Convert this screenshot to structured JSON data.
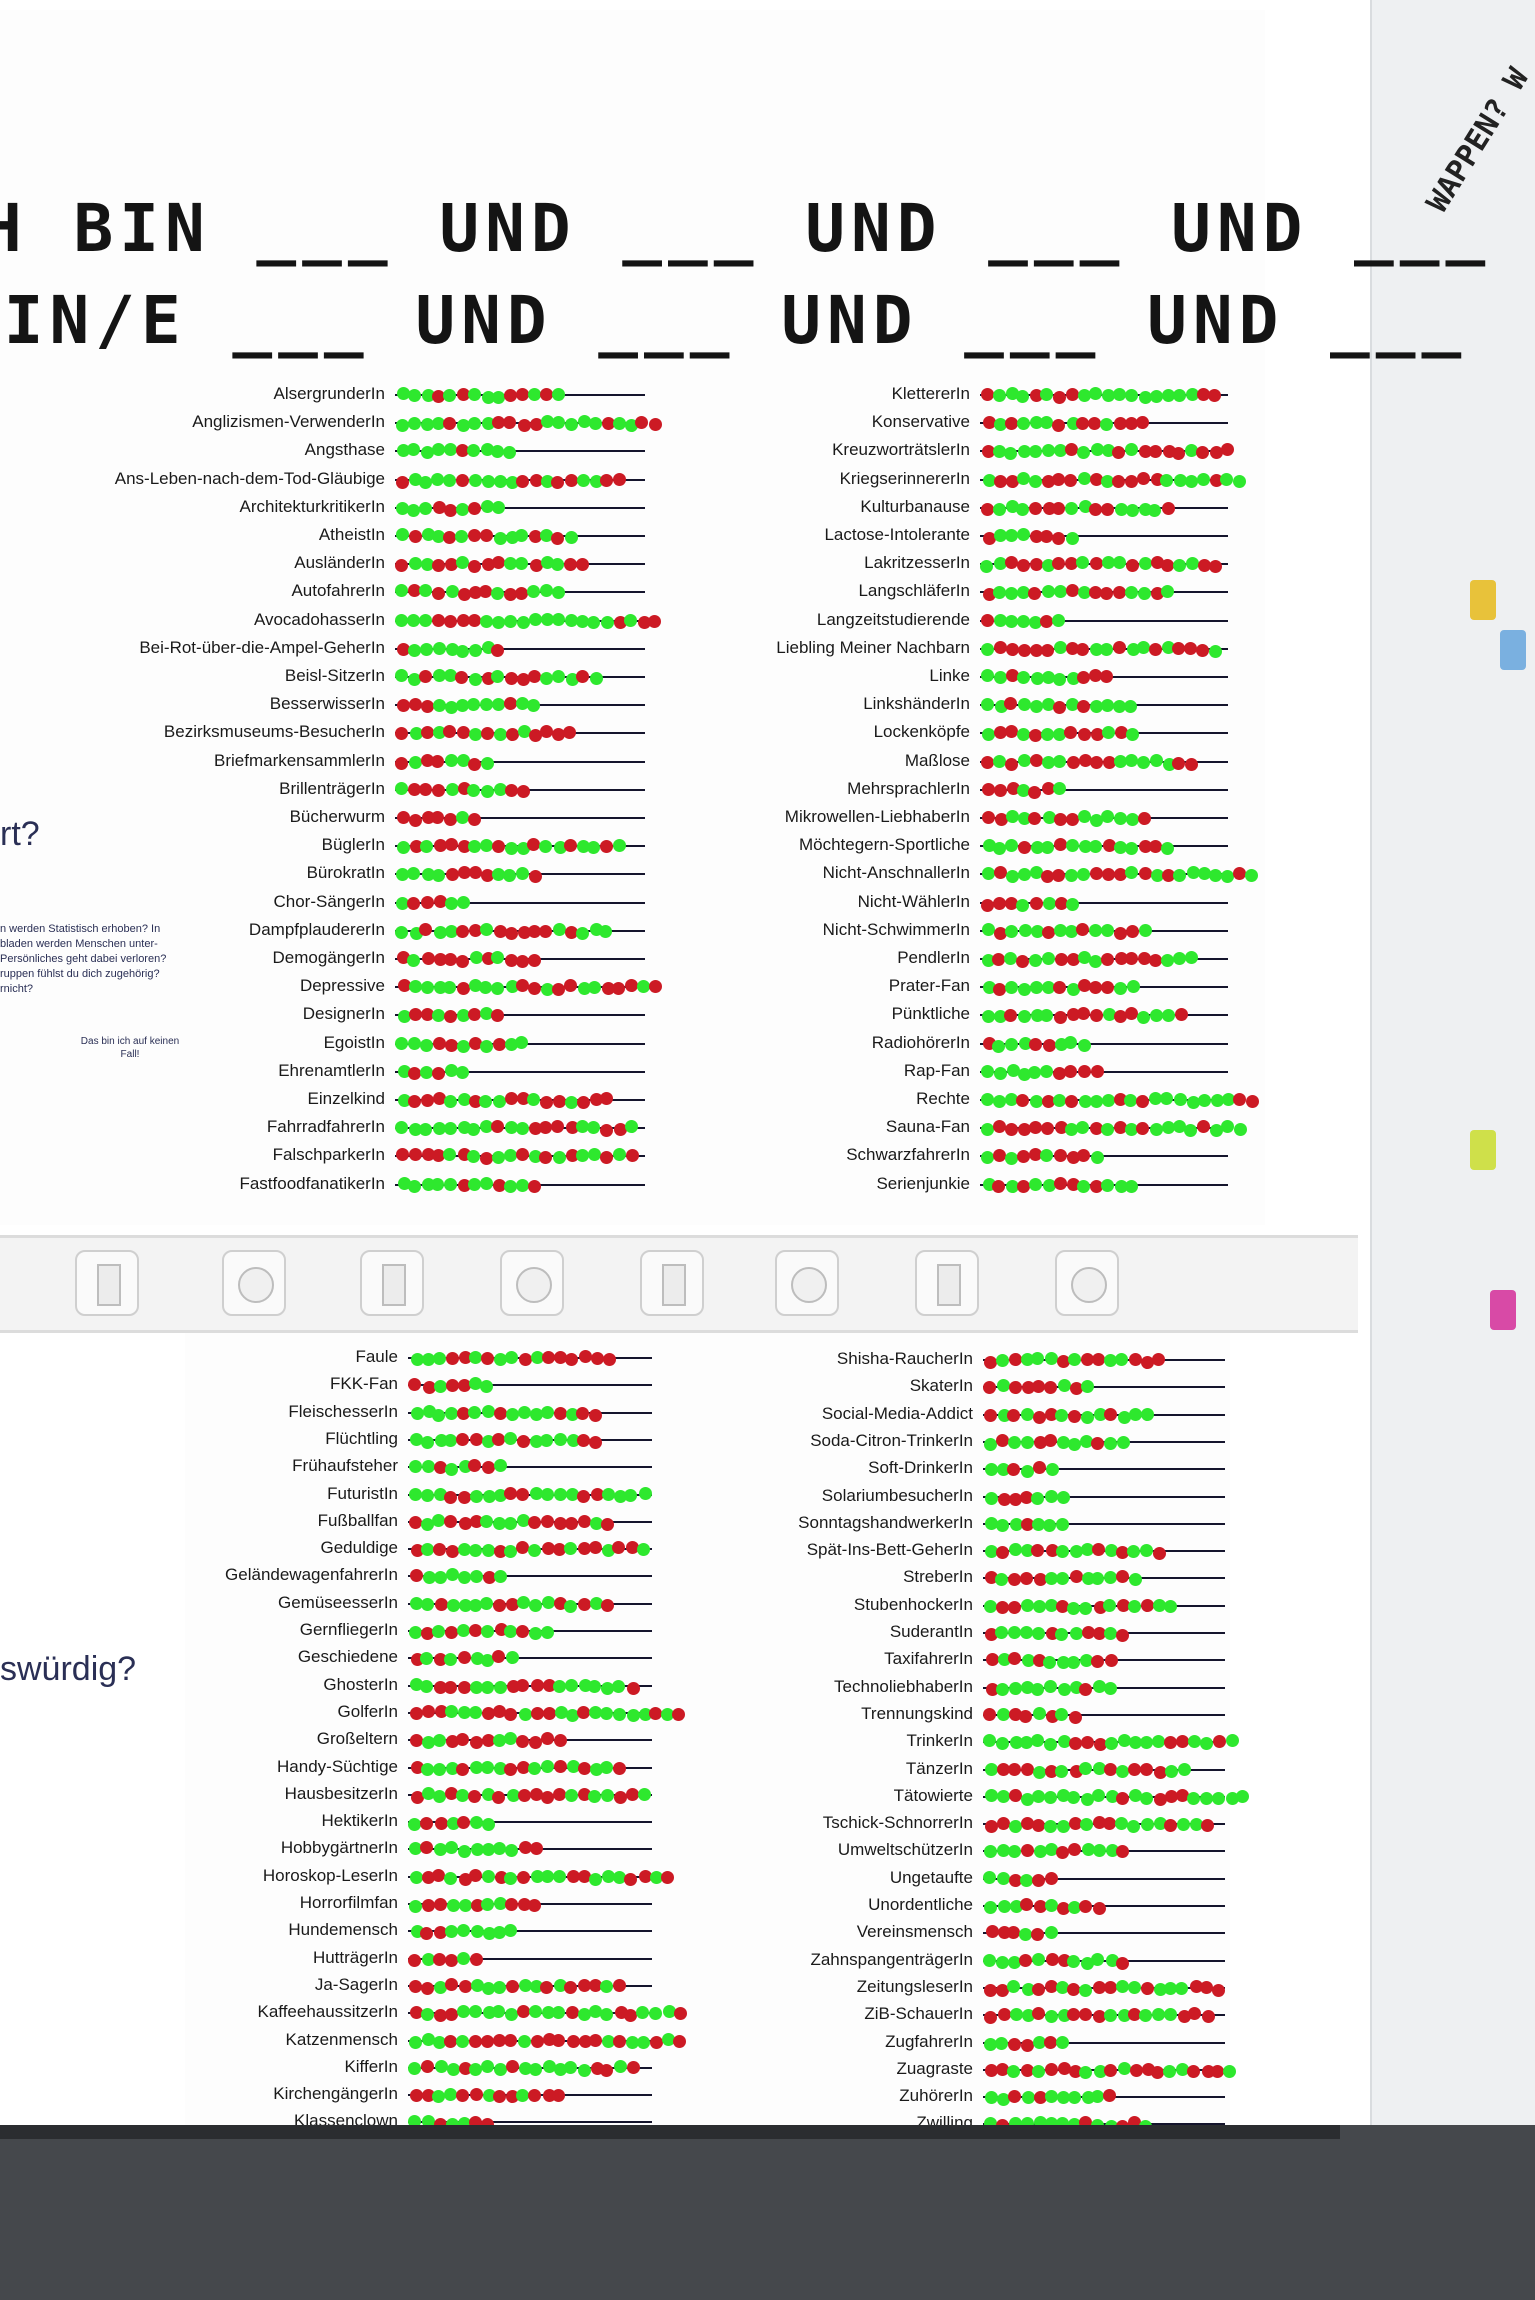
{
  "headline": {
    "line1": "H BIN ___ UND ___ UND ___ UND ___",
    "line2": "EIN/E ___ UND ___ UND ___ UND ___"
  },
  "questions": {
    "q1": "rt?",
    "q2": "swürdig?",
    "note": "n werden Statistisch erhoben? In bladen werden Menschen unter- Persönliches geht dabei verloren? ruppen fühlst du dich zugehörig? rnicht?",
    "pin_label": "Das bin ich auf keinen Fall!"
  },
  "side": {
    "heading": "WAPPEN? W"
  },
  "colors": {
    "green": "#2ee82e",
    "red": "#cc1a24",
    "blue": "#2447c8",
    "line": "#15152d"
  },
  "poster_top_left": [
    "AlsergrunderIn",
    "Anglizismen-VerwenderIn",
    "Angsthase",
    "Ans-Leben-nach-dem-Tod-Gläubige",
    "ArchitekturkritikerIn",
    "AtheistIn",
    "AusländerIn",
    "AutofahrerIn",
    "AvocadohasserIn",
    "Bei-Rot-über-die-Ampel-GeherIn",
    "Beisl-SitzerIn",
    "BesserwisserIn",
    "Bezirksmuseums-BesucherIn",
    "BriefmarkensammlerIn",
    "BrillenträgerIn",
    "Bücherwurm",
    "BüglerIn",
    "BürokratIn",
    "Chor-SängerIn",
    "DampfplaudererIn",
    "DemogängerIn",
    "Depressive",
    "DesignerIn",
    "EgoistIn",
    "EhrenamtlerIn",
    "Einzelkind",
    "FahrradfahrerIn",
    "FalschparkerIn",
    "FastfoodfanatikerIn"
  ],
  "poster_top_right": [
    "KlettererIn",
    "Konservative",
    "KreuzworträtslerIn",
    "KriegserinnererIn",
    "Kulturbanause",
    "Lactose-Intolerante",
    "LakritzesserIn",
    "LangschläferIn",
    "Langzeitstudierende",
    "Liebling Meiner Nachbarn",
    "Linke",
    "LinkshänderIn",
    "Lockenköpfe",
    "Maßlose",
    "MehrsprachlerIn",
    "Mikrowellen-LiebhaberIn",
    "Möchtegern-Sportliche",
    "Nicht-AnschnallerIn",
    "Nicht-WählerIn",
    "Nicht-SchwimmerIn",
    "PendlerIn",
    "Prater-Fan",
    "Pünktliche",
    "RadiohörerIn",
    "Rap-Fan",
    "Rechte",
    "Sauna-Fan",
    "SchwarzfahrerIn",
    "Serienjunkie"
  ],
  "poster_bottom_left": [
    "Faule",
    "FKK-Fan",
    "FleischesserIn",
    "Flüchtling",
    "Frühaufsteher",
    "FuturistIn",
    "Fußballfan",
    "Geduldige",
    "GeländewagenfahrerIn",
    "GemüseesserIn",
    "GernfliegerIn",
    "Geschiedene",
    "GhosterIn",
    "GolferIn",
    "Großeltern",
    "Handy-Süchtige",
    "HausbesitzerIn",
    "HektikerIn",
    "HobbygärtnerIn",
    "Horoskop-LeserIn",
    "Horrorfilmfan",
    "Hundemensch",
    "HutträgerIn",
    "Ja-SagerIn",
    "KaffeehaussitzerIn",
    "Katzenmensch",
    "KifferIn",
    "KirchengängerIn",
    "Klassenclown"
  ],
  "poster_bottom_right": [
    "Shisha-RaucherIn",
    "SkaterIn",
    "Social-Media-Addict",
    "Soda-Citron-TrinkerIn",
    "Soft-DrinkerIn",
    "SolariumbesucherIn",
    "SonntagshandwerkerIn",
    "Spät-Ins-Bett-GeherIn",
    "StreberIn",
    "StubenhockerIn",
    "SuderantIn",
    "TaxifahrerIn",
    "TechnoliebhaberIn",
    "Trennungskind",
    "TrinkerIn",
    "TänzerIn",
    "Tätowierte",
    "Tschick-SchnorrerIn",
    "UmweltschützerIn",
    "Ungetaufte",
    "Unordentliche",
    "Vereinsmensch",
    "ZahnspangenträgerIn",
    "ZeitungsleserIn",
    "ZiB-SchauerIn",
    "ZugfahrerIn",
    "Zuagraste",
    "ZuhörerIn",
    "Zwilling"
  ]
}
